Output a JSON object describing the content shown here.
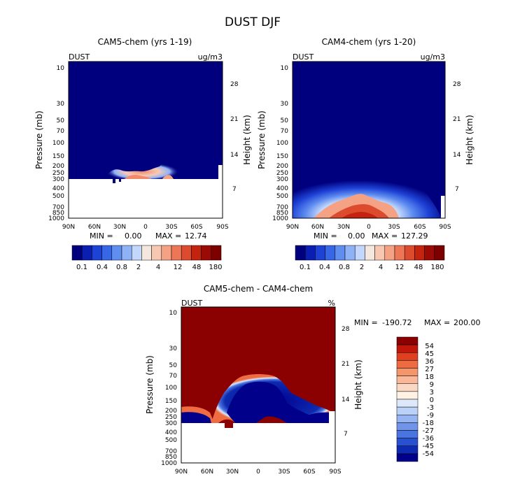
{
  "chart_data": {
    "type": "heatmap",
    "title": "DUST DJF",
    "panels": [
      {
        "id": "cam5",
        "title": "CAM5-chem (yrs 1-19)",
        "variable": "DUST",
        "units": "ug/m3",
        "min_label": "MIN =",
        "min_value": "0.00",
        "max_label": "MAX =",
        "max_value": "12.74",
        "ylabel": "Pressure (mb)",
        "ylabel_right": "Height (km)",
        "xticks": [
          "90N",
          "60N",
          "30N",
          "0",
          "30S",
          "60S",
          "90S"
        ],
        "yticks": [
          "10",
          "30",
          "50",
          "70",
          "100",
          "150",
          "200",
          "250",
          "300",
          "400",
          "500",
          "700",
          "850",
          "1000"
        ],
        "yticks_right": [
          "28",
          "21",
          "14",
          "7"
        ],
        "colorbar_labels": [
          "0.1",
          "0.4",
          "0.8",
          "2",
          "4",
          "12",
          "48",
          "180"
        ]
      },
      {
        "id": "cam4",
        "title": "CAM4-chem (yrs 1-20)",
        "variable": "DUST",
        "units": "ug/m3",
        "min_label": "MIN =",
        "min_value": "0.00",
        "max_label": "MAX =",
        "max_value": "127.29",
        "ylabel": "Pressure (mb)",
        "ylabel_right": "Height (km)",
        "xticks": [
          "90N",
          "60N",
          "30N",
          "0",
          "30S",
          "60S",
          "90S"
        ],
        "yticks": [
          "10",
          "30",
          "50",
          "70",
          "100",
          "150",
          "200",
          "250",
          "300",
          "400",
          "500",
          "700",
          "850",
          "1000"
        ],
        "yticks_right": [
          "28",
          "21",
          "14",
          "7"
        ],
        "colorbar_labels": [
          "0.1",
          "0.4",
          "0.8",
          "2",
          "4",
          "12",
          "48",
          "180"
        ]
      },
      {
        "id": "diff",
        "title": "CAM5-chem - CAM4-chem",
        "variable": "DUST",
        "units": "%",
        "min_label": "MIN =",
        "min_value": "-190.72",
        "max_label": "MAX =",
        "max_value": "200.00",
        "ylabel": "Pressure (mb)",
        "ylabel_right": "Height (km)",
        "xticks": [
          "90N",
          "60N",
          "30N",
          "0",
          "30S",
          "60S",
          "90S"
        ],
        "yticks": [
          "10",
          "30",
          "50",
          "70",
          "100",
          "150",
          "200",
          "250",
          "300",
          "400",
          "500",
          "700",
          "850",
          "1000"
        ],
        "yticks_right": [
          "28",
          "21",
          "14",
          "7"
        ],
        "colorbar_labels": [
          "54",
          "45",
          "36",
          "27",
          "18",
          "9",
          "3",
          "0",
          "-3",
          "-9",
          "-18",
          "-27",
          "-36",
          "-45",
          "-54"
        ]
      }
    ]
  },
  "colors": {
    "abs_scale": [
      "#00007f",
      "#0a1fb2",
      "#1e42d6",
      "#3767e6",
      "#5f8df0",
      "#8fb2f7",
      "#c3d6fb",
      "#f4e7de",
      "#f8c7b2",
      "#f5a183",
      "#ec7656",
      "#dd4b2e",
      "#c4230f",
      "#9b0a05",
      "#7c0000"
    ],
    "diff_scale": [
      "#8b0000",
      "#c0160b",
      "#e0401f",
      "#ef6c42",
      "#f5956c",
      "#f8b899",
      "#fad8c3",
      "#fff2e4",
      "#dde9fb",
      "#bcd1f7",
      "#96b4f1",
      "#7094ea",
      "#4a74e0",
      "#2751d0",
      "#0d2ab0",
      "#00008b"
    ]
  }
}
